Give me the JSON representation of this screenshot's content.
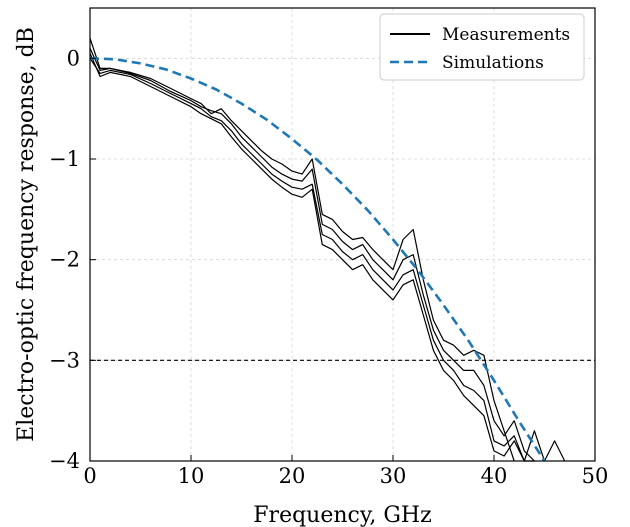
{
  "chart_data": {
    "type": "line",
    "xlabel": "Frequency, GHz",
    "ylabel": "Electro-optic frequency response, dB",
    "xlim": [
      0,
      50
    ],
    "ylim": [
      -4,
      0.5
    ],
    "xticks": [
      "0",
      "10",
      "20",
      "30",
      "40",
      "50"
    ],
    "yticks": [
      "0",
      "−1",
      "−2",
      "−3",
      "−4"
    ],
    "grid": true,
    "legend_position": "top-right",
    "reference_line": {
      "y": -3,
      "style": "dashed",
      "color": "#000000"
    },
    "series": [
      {
        "name": "Measurements",
        "color": "#000000",
        "style": "solid",
        "x": [
          0,
          1,
          2,
          4,
          6,
          8,
          10,
          11,
          12,
          13,
          14,
          15,
          16,
          17,
          18,
          19,
          20,
          21,
          22,
          23,
          24,
          25,
          26,
          27,
          28,
          29,
          30,
          31,
          32,
          33,
          34,
          35,
          36,
          37,
          38,
          39,
          40,
          41,
          42
        ],
        "y": [
          0.2,
          -0.1,
          -0.1,
          -0.14,
          -0.2,
          -0.3,
          -0.4,
          -0.45,
          -0.55,
          -0.5,
          -0.62,
          -0.72,
          -0.82,
          -0.92,
          -1.0,
          -1.05,
          -1.12,
          -1.15,
          -1.0,
          -1.55,
          -1.6,
          -1.72,
          -1.8,
          -1.78,
          -1.9,
          -2.0,
          -2.1,
          -1.8,
          -1.7,
          -2.2,
          -2.6,
          -2.8,
          -2.85,
          -2.95,
          -2.9,
          -2.95,
          -3.4,
          -3.7,
          -4.0
        ]
      },
      {
        "name": "",
        "color": "#000000",
        "style": "solid",
        "x": [
          0,
          1,
          2,
          4,
          6,
          8,
          10,
          11,
          12,
          13,
          14,
          15,
          16,
          17,
          18,
          19,
          20,
          21,
          22,
          23,
          24,
          25,
          26,
          27,
          28,
          29,
          30,
          31,
          32,
          33,
          34,
          35,
          36,
          37,
          38,
          39,
          40,
          41,
          42,
          43,
          44
        ],
        "y": [
          0.1,
          -0.12,
          -0.1,
          -0.15,
          -0.22,
          -0.33,
          -0.42,
          -0.48,
          -0.52,
          -0.55,
          -0.65,
          -0.78,
          -0.88,
          -0.98,
          -1.08,
          -1.15,
          -1.2,
          -1.22,
          -1.1,
          -1.65,
          -1.7,
          -1.82,
          -1.9,
          -1.85,
          -2.0,
          -2.1,
          -2.2,
          -2.0,
          -1.95,
          -2.35,
          -2.7,
          -2.9,
          -3.0,
          -3.1,
          -3.1,
          -3.25,
          -3.6,
          -3.75,
          -3.6,
          -3.9,
          -4.0
        ]
      },
      {
        "name": "",
        "color": "#000000",
        "style": "solid",
        "x": [
          0,
          1,
          2,
          4,
          6,
          8,
          10,
          11,
          12,
          13,
          14,
          15,
          16,
          17,
          18,
          19,
          20,
          21,
          22,
          23,
          24,
          25,
          26,
          27,
          28,
          29,
          30,
          31,
          32,
          33,
          34,
          35,
          36,
          37,
          38,
          39,
          40,
          41,
          42,
          43,
          44
        ],
        "y": [
          0.0,
          -0.15,
          -0.12,
          -0.16,
          -0.25,
          -0.35,
          -0.45,
          -0.5,
          -0.58,
          -0.62,
          -0.72,
          -0.85,
          -0.95,
          -1.05,
          -1.15,
          -1.22,
          -1.28,
          -1.3,
          -1.25,
          -1.75,
          -1.8,
          -1.92,
          -2.0,
          -1.95,
          -2.1,
          -2.2,
          -2.3,
          -2.15,
          -2.1,
          -2.45,
          -2.8,
          -3.0,
          -3.1,
          -3.25,
          -3.3,
          -3.4,
          -3.8,
          -3.85,
          -3.75,
          -4.0,
          -4.0
        ]
      },
      {
        "name": "",
        "color": "#000000",
        "style": "solid",
        "x": [
          0,
          1,
          2,
          4,
          6,
          8,
          10,
          11,
          12,
          13,
          14,
          15,
          16,
          17,
          18,
          19,
          20,
          21,
          22,
          23,
          24,
          25,
          26,
          27,
          28,
          29,
          30,
          31,
          32,
          33,
          34,
          35,
          36,
          37,
          38,
          39,
          40,
          41,
          42,
          43,
          44,
          45,
          46,
          47
        ],
        "y": [
          0.05,
          -0.18,
          -0.14,
          -0.18,
          -0.28,
          -0.38,
          -0.48,
          -0.55,
          -0.6,
          -0.65,
          -0.78,
          -0.9,
          -1.0,
          -1.1,
          -1.2,
          -1.28,
          -1.35,
          -1.38,
          -1.3,
          -1.85,
          -1.9,
          -2.0,
          -2.1,
          -2.05,
          -2.2,
          -2.3,
          -2.4,
          -2.25,
          -2.2,
          -2.55,
          -2.9,
          -3.1,
          -3.2,
          -3.35,
          -3.45,
          -3.55,
          -3.9,
          -3.95,
          -3.8,
          -4.0,
          -3.7,
          -4.0,
          -3.8,
          -4.0
        ]
      },
      {
        "name": "Simulations",
        "color": "#1f77b4",
        "style": "dashed",
        "x": [
          0,
          2.5,
          5,
          7.5,
          10,
          12.5,
          15,
          17.5,
          20,
          22.5,
          25,
          27.5,
          30,
          32.5,
          35,
          37.5,
          40,
          42.5,
          45
        ],
        "y": [
          0.0,
          -0.01,
          -0.05,
          -0.11,
          -0.2,
          -0.31,
          -0.45,
          -0.61,
          -0.8,
          -1.01,
          -1.25,
          -1.51,
          -1.8,
          -2.11,
          -2.45,
          -2.81,
          -3.2,
          -3.61,
          -4.0
        ]
      }
    ]
  }
}
